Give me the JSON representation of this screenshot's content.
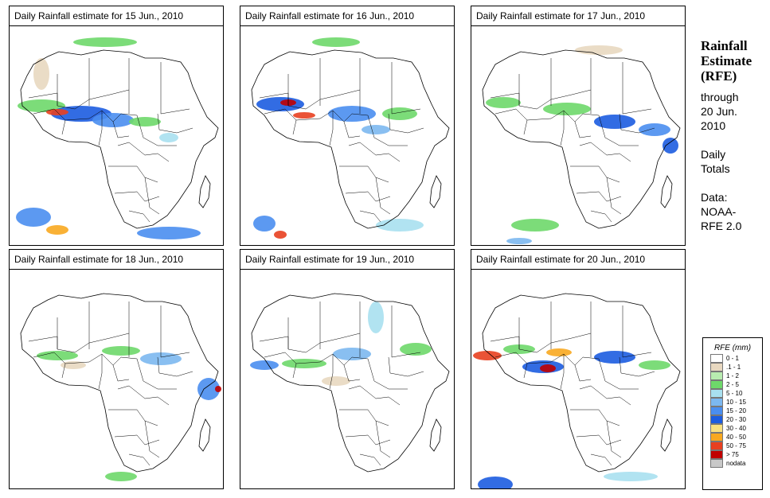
{
  "panels": [
    {
      "title": "Daily Rainfall estimate for  15 Jun., 2010"
    },
    {
      "title": "Daily Rainfall estimate for  16 Jun., 2010"
    },
    {
      "title": "Daily Rainfall estimate for  17 Jun., 2010"
    },
    {
      "title": "Daily Rainfall estimate for  18 Jun., 2010"
    },
    {
      "title": "Daily Rainfall estimate for  19 Jun., 2010"
    },
    {
      "title": "Daily Rainfall estimate for  20 Jun., 2010"
    }
  ],
  "sidebar": {
    "heading1": "Rainfall",
    "heading2": "Estimate",
    "heading3": "(RFE)",
    "through": "through",
    "date1": "20 Jun.",
    "date2": "2010",
    "daily": "Daily",
    "totals": "Totals",
    "data_label": "Data:",
    "source1": "NOAA-",
    "source2": "RFE 2.0"
  },
  "legend": {
    "title": "RFE (mm)",
    "items": [
      {
        "label": "0 - 1",
        "color": "#ffffff"
      },
      {
        "label": ".1 - 1",
        "color": "#e8d8c0"
      },
      {
        "label": "1 - 2",
        "color": "#b8ecb0"
      },
      {
        "label": "2 - 5",
        "color": "#6ed86a"
      },
      {
        "label": "5 - 10",
        "color": "#a8e0f0"
      },
      {
        "label": "10 - 15",
        "color": "#7cb8f0"
      },
      {
        "label": "15 - 20",
        "color": "#4a8ef0"
      },
      {
        "label": "20 - 30",
        "color": "#1c5ce0"
      },
      {
        "label": "30 - 40",
        "color": "#f8e080"
      },
      {
        "label": "40 - 50",
        "color": "#f8a820"
      },
      {
        "label": "50 - 75",
        "color": "#e84020"
      },
      {
        "label": "> 75",
        "color": "#c00000"
      },
      {
        "label": "nodata",
        "color": "#c8c8c8"
      }
    ]
  }
}
